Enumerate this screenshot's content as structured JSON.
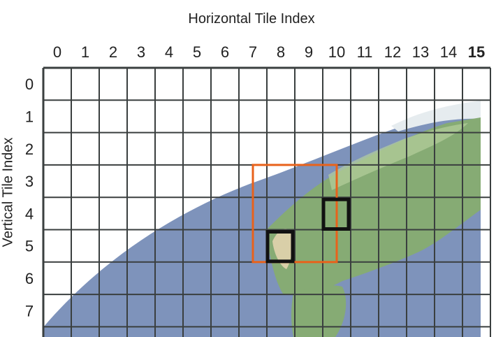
{
  "titles": {
    "horizontal": "Horizontal Tile Index",
    "vertical": "Vertical Tile Index"
  },
  "columns": [
    "0",
    "1",
    "2",
    "3",
    "4",
    "5",
    "6",
    "7",
    "8",
    "9",
    "10",
    "11",
    "12",
    "13",
    "14",
    "15"
  ],
  "rows": [
    "0",
    "1",
    "2",
    "3",
    "4",
    "5",
    "6",
    "7"
  ],
  "highlight_region": {
    "color": "#e8621b",
    "col_start": 7.5,
    "col_end": 10.5,
    "row_start": 3,
    "row_end": 5
  },
  "highlight_tiles": [
    {
      "color": "#111111",
      "col": 8,
      "row": 5
    },
    {
      "color": "#111111",
      "col": 10,
      "row": 4
    }
  ],
  "colors": {
    "grid": "#3a3f3f",
    "ocean": "#7e93bb",
    "land": "#86ab74",
    "land_light": "#b5cf9d",
    "desert": "#d9cfa8",
    "ice": "#e6ecef"
  }
}
